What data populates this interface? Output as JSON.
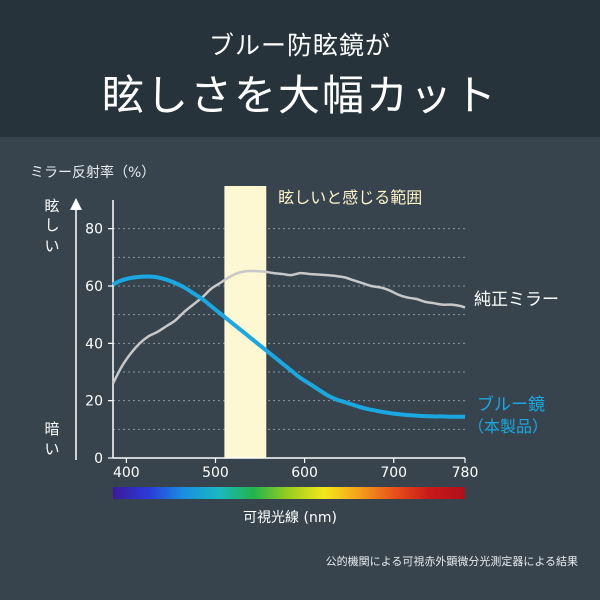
{
  "header": {
    "subtitle": "ブルー防眩鏡が",
    "title": "眩しさを大幅カット"
  },
  "chart_data": {
    "type": "line",
    "ylabel": "ミラー反射率（%）",
    "xlabel": "可視光線 (nm)",
    "xlim": [
      385,
      780
    ],
    "ylim": [
      0,
      90
    ],
    "x_ticks": [
      "400",
      "500",
      "600",
      "700",
      "780"
    ],
    "x_tick_values": [
      400,
      500,
      600,
      700,
      780
    ],
    "y_ticks": [
      "0",
      "20",
      "40",
      "60",
      "80"
    ],
    "y_tick_values": [
      0,
      20,
      40,
      60,
      80
    ],
    "grid": "dotted-horizontal",
    "y_top_label": "眩しい",
    "y_bottom_label": "暗い",
    "highlight_band": {
      "label": "眩しいと感じる範囲",
      "x_range": [
        510,
        557
      ],
      "color": "#fdf8d2"
    },
    "series": [
      {
        "name": "純正ミラー",
        "color": "#c8c8c8",
        "x": [
          385,
          395,
          405,
          415,
          425,
          435,
          445,
          455,
          465,
          475,
          485,
          495,
          505,
          515,
          525,
          535,
          545,
          555,
          565,
          575,
          585,
          595,
          605,
          615,
          625,
          635,
          645,
          655,
          665,
          675,
          685,
          695,
          705,
          715,
          725,
          735,
          745,
          755,
          765,
          775,
          780
        ],
        "y": [
          26,
          32,
          36.5,
          40,
          42.5,
          44,
          46,
          48,
          51,
          53.5,
          56,
          59,
          61,
          63,
          64.5,
          65.2,
          65.2,
          65,
          64.5,
          64.2,
          63.8,
          64.5,
          64.2,
          64,
          63.8,
          63.5,
          63,
          62,
          61,
          60,
          59.5,
          58.5,
          57,
          56,
          55.5,
          54.5,
          54,
          53.5,
          53.5,
          53,
          52.5
        ]
      },
      {
        "name": "ブルー鏡",
        "label_line2": "（本製品）",
        "color": "#1aa8e2",
        "x": [
          385,
          395,
          405,
          415,
          425,
          435,
          445,
          455,
          465,
          475,
          485,
          495,
          505,
          515,
          525,
          535,
          545,
          555,
          565,
          575,
          585,
          595,
          605,
          615,
          625,
          635,
          645,
          655,
          665,
          675,
          685,
          695,
          705,
          715,
          725,
          735,
          745,
          755,
          765,
          775,
          780
        ],
        "y": [
          60.5,
          62,
          62.8,
          63.2,
          63.3,
          63,
          62.2,
          61,
          59.5,
          57.5,
          55.5,
          53,
          50.5,
          48,
          45.5,
          43,
          40.5,
          38,
          35.5,
          33,
          30.5,
          28,
          26,
          24,
          22,
          20.5,
          19.5,
          18.5,
          17.5,
          16.8,
          16.2,
          15.7,
          15.3,
          15,
          14.8,
          14.6,
          14.5,
          14.5,
          14.4,
          14.4,
          14.4
        ]
      }
    ],
    "spectrum_colors": [
      "#3b1a9a",
      "#2a3ad8",
      "#1a8ee0",
      "#19b8c0",
      "#22b44a",
      "#9ccd1e",
      "#f2e81a",
      "#f4a01a",
      "#e8501a",
      "#c8181a",
      "#b0101a"
    ]
  },
  "footnote": "公的機関による可視赤外顕微分光測定器による結果"
}
